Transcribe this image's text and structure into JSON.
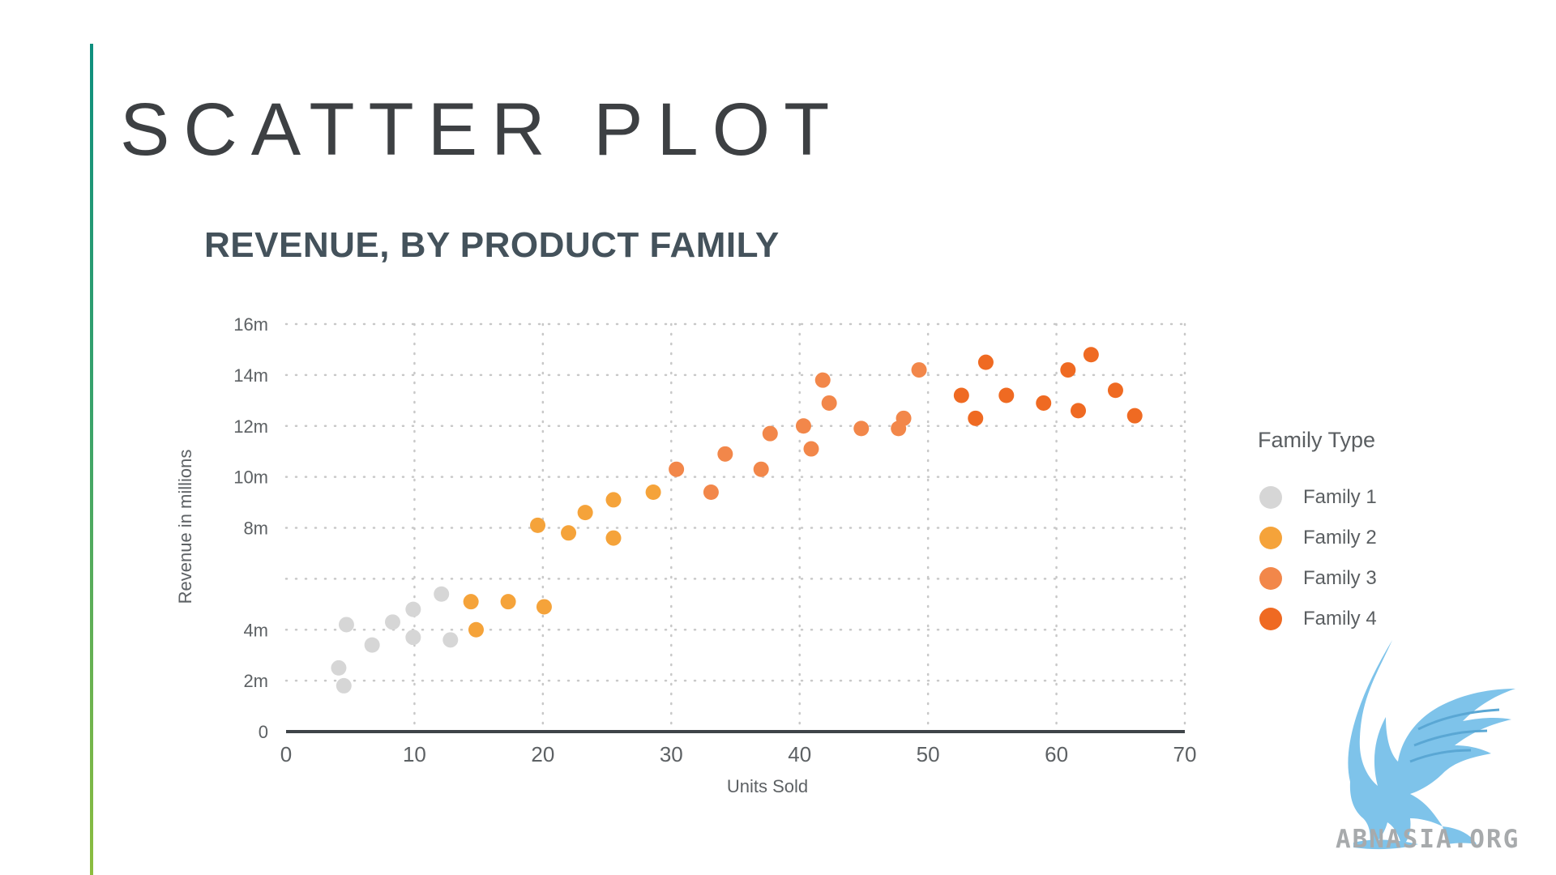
{
  "slide": {
    "title": "SCATTER PLOT"
  },
  "colors": {
    "accent_top": "#0e8f7e",
    "accent_bottom": "#8cbd3f",
    "family_1": "#d6d6d6",
    "family_2": "#f5a33a",
    "family_3": "#f2874a",
    "family_4": "#ef6a22",
    "axis": "#3f4448",
    "grid": "#c8c8c8"
  },
  "chart_data": {
    "type": "scatter",
    "title": "REVENUE, BY PRODUCT FAMILY",
    "xlabel": "Units Sold",
    "ylabel": "Revenue in millions",
    "xlim": [
      0,
      70
    ],
    "ylim": [
      0,
      16
    ],
    "x_ticks": [
      0,
      10,
      20,
      30,
      40,
      50,
      60,
      70
    ],
    "y_ticks": [
      0,
      2,
      4,
      6,
      8,
      10,
      12,
      14,
      16
    ],
    "y_tick_labels": [
      "0",
      "2m",
      "4m",
      "",
      "8m",
      "10m",
      "12m",
      "14m",
      "16m"
    ],
    "grid": true,
    "legend_title": "Family Type",
    "legend_position": "right",
    "series": [
      {
        "name": "Family 1",
        "color": "#d6d6d6",
        "points": [
          [
            4.1,
            2.5
          ],
          [
            4.5,
            1.8
          ],
          [
            4.7,
            4.2
          ],
          [
            6.7,
            3.4
          ],
          [
            8.3,
            4.3
          ],
          [
            9.9,
            4.8
          ],
          [
            9.9,
            3.7
          ],
          [
            12.1,
            5.4
          ],
          [
            12.8,
            3.6
          ]
        ]
      },
      {
        "name": "Family 2",
        "color": "#f5a33a",
        "points": [
          [
            14.4,
            5.1
          ],
          [
            14.8,
            4.0
          ],
          [
            17.3,
            5.1
          ],
          [
            19.6,
            8.1
          ],
          [
            20.1,
            4.9
          ],
          [
            22.0,
            7.8
          ],
          [
            23.3,
            8.6
          ],
          [
            25.5,
            9.1
          ],
          [
            25.5,
            7.6
          ],
          [
            28.6,
            9.4
          ]
        ]
      },
      {
        "name": "Family 3",
        "color": "#f2874a",
        "points": [
          [
            30.4,
            10.3
          ],
          [
            33.1,
            9.4
          ],
          [
            34.2,
            10.9
          ],
          [
            37.0,
            10.3
          ],
          [
            37.7,
            11.7
          ],
          [
            40.3,
            12.0
          ],
          [
            40.9,
            11.1
          ],
          [
            41.8,
            13.8
          ],
          [
            42.3,
            12.9
          ],
          [
            44.8,
            11.9
          ],
          [
            47.7,
            11.9
          ],
          [
            48.1,
            12.3
          ],
          [
            49.3,
            14.2
          ]
        ]
      },
      {
        "name": "Family 4",
        "color": "#ef6a22",
        "points": [
          [
            52.6,
            13.2
          ],
          [
            53.7,
            12.3
          ],
          [
            54.5,
            14.5
          ],
          [
            56.1,
            13.2
          ],
          [
            59.0,
            12.9
          ],
          [
            60.9,
            14.2
          ],
          [
            61.7,
            12.6
          ],
          [
            62.7,
            14.8
          ],
          [
            64.6,
            13.4
          ],
          [
            66.1,
            12.4
          ]
        ]
      }
    ]
  },
  "watermark": {
    "text": "ABNASIA.ORG",
    "icon": "griffin-logo",
    "color": "#7ec3ea"
  }
}
